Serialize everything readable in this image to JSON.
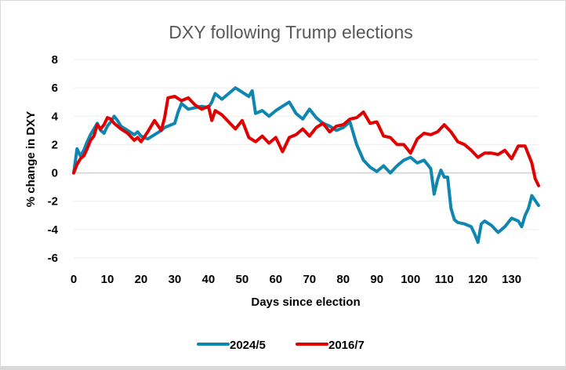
{
  "chart_data": {
    "type": "line",
    "title": "DXY following Trump elections",
    "xlabel": "Days since election",
    "ylabel": "% change in DXY",
    "xlim": [
      0,
      138
    ],
    "ylim": [
      -6,
      8
    ],
    "xticks": [
      0,
      10,
      20,
      30,
      40,
      50,
      60,
      70,
      80,
      90,
      100,
      110,
      120,
      130
    ],
    "yticks": [
      8,
      6,
      4,
      2,
      0,
      -2,
      -4,
      -6
    ],
    "grid": true,
    "legend": "bottom",
    "series": [
      {
        "name": "2024/5",
        "color": "#0e86b0",
        "x": [
          0,
          1,
          2,
          3,
          4,
          5,
          6,
          7,
          8,
          9,
          10,
          11,
          12,
          13,
          14,
          16,
          18,
          19,
          20,
          22,
          24,
          26,
          27,
          28,
          30,
          31,
          32,
          34,
          36,
          38,
          40,
          41,
          42,
          44,
          46,
          48,
          50,
          52,
          53,
          54,
          56,
          58,
          60,
          62,
          64,
          66,
          68,
          70,
          72,
          74,
          76,
          78,
          80,
          82,
          84,
          86,
          88,
          90,
          92,
          94,
          96,
          98,
          100,
          102,
          104,
          106,
          107,
          108,
          109,
          110,
          111,
          112,
          113,
          114,
          116,
          118,
          119,
          120,
          121,
          122,
          124,
          126,
          128,
          130,
          132,
          133,
          134,
          135,
          136,
          138
        ],
        "y": [
          0,
          1.7,
          1.2,
          1.6,
          2.2,
          2.7,
          3.1,
          3.5,
          3.0,
          2.8,
          3.3,
          3.6,
          4.0,
          3.7,
          3.3,
          3.0,
          2.7,
          2.9,
          2.6,
          2.4,
          2.7,
          3.0,
          3.2,
          3.3,
          3.5,
          4.3,
          4.9,
          4.5,
          4.6,
          4.7,
          4.6,
          5.0,
          5.6,
          5.2,
          5.6,
          6.0,
          5.7,
          5.4,
          5.8,
          4.2,
          4.4,
          4.0,
          4.4,
          4.7,
          5.0,
          4.2,
          3.8,
          4.5,
          3.9,
          3.5,
          3.3,
          3.0,
          3.2,
          3.6,
          2.0,
          0.9,
          0.4,
          0.1,
          0.5,
          0.0,
          0.5,
          0.9,
          1.1,
          0.7,
          0.9,
          0.3,
          -1.5,
          -0.5,
          0.2,
          -0.3,
          -0.3,
          -2.5,
          -3.3,
          -3.5,
          -3.6,
          -3.8,
          -4.3,
          -4.9,
          -3.6,
          -3.4,
          -3.7,
          -4.2,
          -3.8,
          -3.2,
          -3.4,
          -3.8,
          -3.0,
          -2.5,
          -1.6,
          -2.3
        ]
      },
      {
        "name": "2016/7",
        "color": "#e00000",
        "x": [
          0,
          1,
          2,
          3,
          4,
          5,
          6,
          7,
          8,
          9,
          10,
          11,
          12,
          14,
          16,
          18,
          19,
          20,
          22,
          24,
          26,
          27,
          28,
          30,
          32,
          34,
          36,
          38,
          40,
          41,
          42,
          44,
          46,
          48,
          50,
          52,
          54,
          56,
          58,
          60,
          62,
          64,
          66,
          68,
          70,
          72,
          74,
          76,
          78,
          80,
          82,
          84,
          86,
          88,
          90,
          92,
          94,
          96,
          98,
          100,
          102,
          104,
          106,
          108,
          110,
          112,
          114,
          116,
          118,
          120,
          122,
          124,
          126,
          128,
          130,
          132,
          134,
          135,
          136,
          137,
          138
        ],
        "y": [
          0,
          0.6,
          1.0,
          1.2,
          1.7,
          2.3,
          2.6,
          3.4,
          3.1,
          3.4,
          3.9,
          3.8,
          3.5,
          3.1,
          2.8,
          2.3,
          2.5,
          2.2,
          2.9,
          3.7,
          3.0,
          3.9,
          5.3,
          5.4,
          5.1,
          5.3,
          4.8,
          4.5,
          4.7,
          3.7,
          4.4,
          4.1,
          3.6,
          3.1,
          3.7,
          2.5,
          2.2,
          2.6,
          2.1,
          2.5,
          1.5,
          2.5,
          2.7,
          3.1,
          2.6,
          3.2,
          3.5,
          2.9,
          3.3,
          3.4,
          3.8,
          3.9,
          4.3,
          3.5,
          3.6,
          2.6,
          2.5,
          2.0,
          2.0,
          1.4,
          2.4,
          2.8,
          2.7,
          2.9,
          3.4,
          2.9,
          2.2,
          2.0,
          1.6,
          1.1,
          1.4,
          1.4,
          1.3,
          1.6,
          1.0,
          1.9,
          1.9,
          1.3,
          0.7,
          -0.4,
          -0.9
        ]
      }
    ]
  }
}
